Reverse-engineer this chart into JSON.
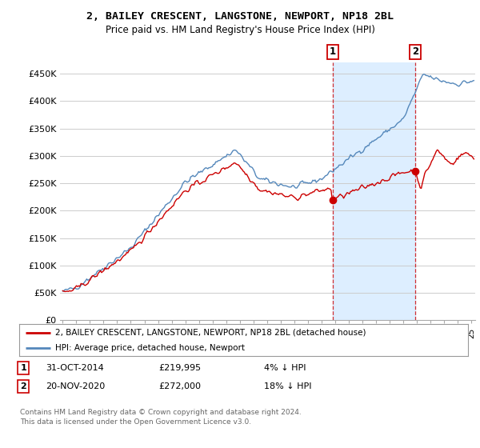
{
  "title": "2, BAILEY CRESCENT, LANGSTONE, NEWPORT, NP18 2BL",
  "subtitle": "Price paid vs. HM Land Registry's House Price Index (HPI)",
  "legend_label_red": "2, BAILEY CRESCENT, LANGSTONE, NEWPORT, NP18 2BL (detached house)",
  "legend_label_blue": "HPI: Average price, detached house, Newport",
  "annotation1_date": "31-OCT-2014",
  "annotation1_price": "£219,995",
  "annotation1_pct": "4% ↓ HPI",
  "annotation2_date": "20-NOV-2020",
  "annotation2_price": "£272,000",
  "annotation2_pct": "18% ↓ HPI",
  "footnote": "Contains HM Land Registry data © Crown copyright and database right 2024.\nThis data is licensed under the Open Government Licence v3.0.",
  "ylim": [
    0,
    470000
  ],
  "yticks": [
    0,
    50000,
    100000,
    150000,
    200000,
    250000,
    300000,
    350000,
    400000,
    450000
  ],
  "ytick_labels": [
    "£0",
    "£50K",
    "£100K",
    "£150K",
    "£200K",
    "£250K",
    "£300K",
    "£350K",
    "£400K",
    "£450K"
  ],
  "background_color": "#ffffff",
  "grid_color": "#cccccc",
  "red_color": "#cc0000",
  "blue_color": "#5588bb",
  "shade_color": "#ddeeff",
  "sale1_year": 2014.83,
  "sale1_value": 219995,
  "sale2_year": 2020.92,
  "sale2_value": 272000,
  "vline1_x": 2014.83,
  "vline2_x": 2020.92,
  "xlim_left": 1994.8,
  "xlim_right": 2025.3
}
